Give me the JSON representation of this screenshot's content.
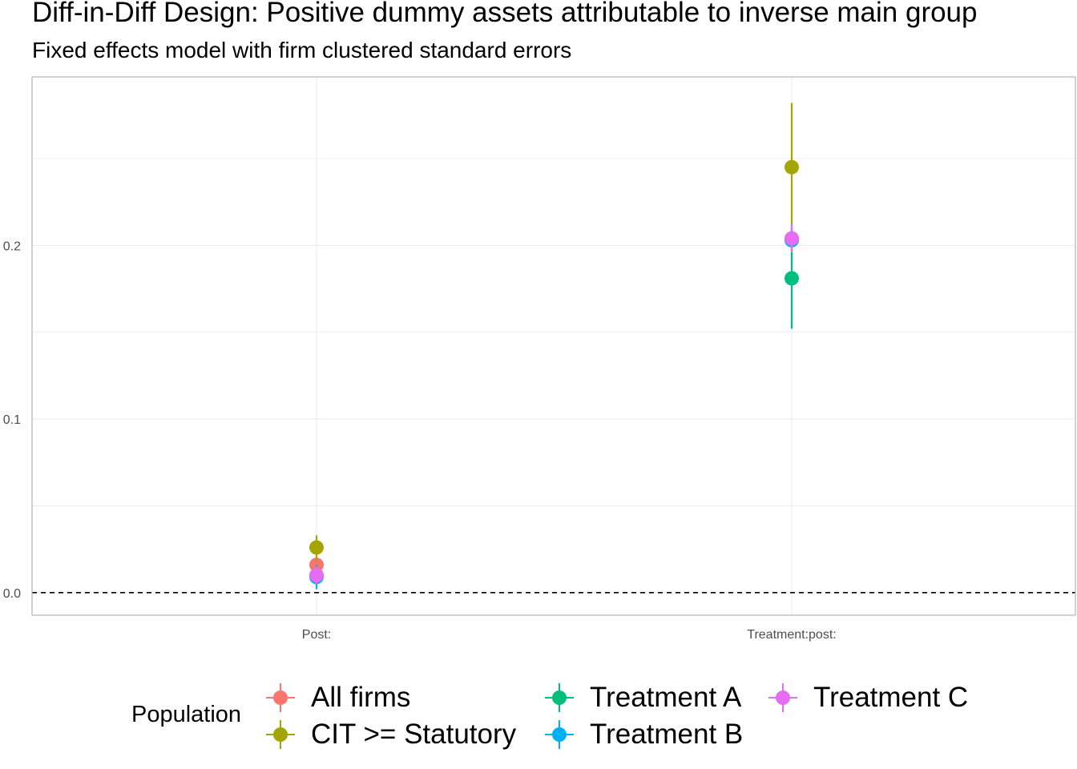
{
  "chart_data": {
    "type": "scatter",
    "title": "Diff-in-Diff Design: Positive dummy assets attributable to inverse main group",
    "subtitle": "Fixed effects model with firm clustered standard errors",
    "xlabel": "",
    "ylabel": "",
    "categories": [
      "Post:",
      "Treatment:post:"
    ],
    "ylim": [
      -0.013,
      0.297
    ],
    "yticks": [
      0.0,
      0.1,
      0.2
    ],
    "ytick_labels": [
      "0.0",
      "0.1",
      "0.2"
    ],
    "reference_line": 0,
    "grid": true,
    "legend_title": "Population",
    "legend_position": "bottom",
    "series": [
      {
        "name": "All firms",
        "color": "#F8766D",
        "points": [
          {
            "category": "Post:",
            "estimate": 0.016,
            "low": 0.011,
            "high": 0.021
          },
          {
            "category": "Treatment:post:",
            "estimate": 0.203,
            "low": 0.197,
            "high": 0.209
          }
        ]
      },
      {
        "name": "CIT >= Statutory",
        "color": "#A3A500",
        "points": [
          {
            "category": "Post:",
            "estimate": 0.026,
            "low": 0.018,
            "high": 0.033
          },
          {
            "category": "Treatment:post:",
            "estimate": 0.245,
            "low": 0.208,
            "high": 0.282
          }
        ]
      },
      {
        "name": "Treatment A",
        "color": "#00BF7D",
        "points": [
          {
            "category": "Post:",
            "estimate": 0.01,
            "low": 0.004,
            "high": 0.016
          },
          {
            "category": "Treatment:post:",
            "estimate": 0.181,
            "low": 0.152,
            "high": 0.21
          }
        ]
      },
      {
        "name": "Treatment B",
        "color": "#00B0F6",
        "points": [
          {
            "category": "Post:",
            "estimate": 0.009,
            "low": 0.002,
            "high": 0.016
          },
          {
            "category": "Treatment:post:",
            "estimate": 0.203,
            "low": 0.196,
            "high": 0.21
          }
        ]
      },
      {
        "name": "Treatment C",
        "color": "#E76BF3",
        "points": [
          {
            "category": "Post:",
            "estimate": 0.01,
            "low": 0.005,
            "high": 0.015
          },
          {
            "category": "Treatment:post:",
            "estimate": 0.204,
            "low": 0.196,
            "high": 0.212
          }
        ]
      }
    ]
  }
}
